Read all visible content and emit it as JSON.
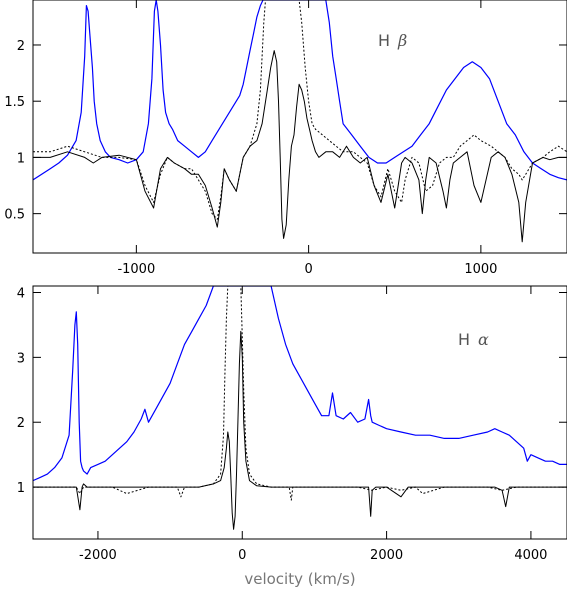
{
  "chart_data": [
    {
      "type": "line",
      "annotation": {
        "element": "H",
        "symbol": "β"
      },
      "xlim": [
        -1600,
        1500
      ],
      "ylim": [
        0.15,
        2.4
      ],
      "xticks": [
        -1000,
        0,
        1000
      ],
      "xtick_labels": [
        "-1000",
        "0",
        "1000"
      ],
      "yticks": [
        0.5,
        1,
        1.5,
        2
      ],
      "ytick_labels": [
        "0.5",
        "1",
        "1.5",
        "2"
      ],
      "grid": false,
      "series": [
        {
          "color": "#0000ff",
          "style": "solid",
          "x": [
            -1600,
            -1500,
            -1450,
            -1400,
            -1350,
            -1320,
            -1300,
            -1290,
            -1280,
            -1270,
            -1255,
            -1245,
            -1230,
            -1210,
            -1180,
            -1150,
            -1100,
            -1050,
            -1000,
            -960,
            -930,
            -910,
            -895,
            -885,
            -875,
            -860,
            -845,
            -830,
            -810,
            -790,
            -760,
            -720,
            -680,
            -640,
            -600,
            -560,
            -520,
            -480,
            -440,
            -400,
            -380,
            -360,
            -340,
            -320,
            -300,
            -280,
            -265,
            -255,
            -250,
            -100,
            -80,
            -60,
            -45,
            -30,
            -15,
            0,
            20,
            40,
            60,
            80,
            100,
            120,
            140,
            160,
            180,
            200,
            250,
            300,
            350,
            400,
            450,
            500,
            550,
            600,
            650,
            700,
            750,
            800,
            850,
            900,
            950,
            1000,
            1050,
            1100,
            1150,
            1200,
            1250,
            1300,
            1350,
            1400,
            1450,
            1500
          ],
          "y": [
            0.8,
            0.9,
            0.95,
            1.02,
            1.15,
            1.4,
            1.9,
            2.35,
            2.3,
            2.1,
            1.8,
            1.5,
            1.3,
            1.15,
            1.05,
            1.0,
            0.98,
            0.95,
            0.98,
            1.05,
            1.3,
            1.7,
            2.3,
            2.4,
            2.3,
            2.0,
            1.6,
            1.4,
            1.3,
            1.25,
            1.15,
            1.1,
            1.05,
            1.0,
            1.05,
            1.15,
            1.25,
            1.35,
            1.45,
            1.55,
            1.65,
            1.8,
            1.95,
            2.1,
            2.25,
            2.35,
            2.4,
            2.4,
            2.4,
            2.4,
            2.4,
            2.4,
            2.4,
            2.4,
            2.4,
            2.4,
            2.4,
            2.4,
            2.4,
            2.4,
            2.4,
            2.2,
            1.9,
            1.7,
            1.5,
            1.3,
            1.2,
            1.1,
            1.0,
            0.95,
            0.95,
            1.0,
            1.05,
            1.1,
            1.2,
            1.3,
            1.45,
            1.6,
            1.7,
            1.8,
            1.85,
            1.8,
            1.7,
            1.5,
            1.3,
            1.2,
            1.05,
            0.95,
            0.9,
            0.85,
            0.82,
            0.8
          ]
        },
        {
          "color": "#000000",
          "style": "solid",
          "x": [
            -1600,
            -1500,
            -1400,
            -1300,
            -1250,
            -1200,
            -1100,
            -1000,
            -950,
            -900,
            -860,
            -820,
            -780,
            -720,
            -680,
            -640,
            -600,
            -560,
            -530,
            -510,
            -490,
            -460,
            -420,
            -380,
            -340,
            -300,
            -270,
            -240,
            -220,
            -200,
            -185,
            -175,
            -165,
            -155,
            -145,
            -130,
            -115,
            -100,
            -85,
            -70,
            -55,
            -40,
            -25,
            -10,
            5,
            20,
            40,
            60,
            100,
            140,
            180,
            220,
            260,
            300,
            340,
            380,
            420,
            460,
            480,
            500,
            520,
            540,
            560,
            600,
            640,
            660,
            680,
            700,
            740,
            780,
            800,
            820,
            840,
            880,
            920,
            960,
            1000,
            1060,
            1100,
            1140,
            1180,
            1220,
            1240,
            1260,
            1300,
            1360,
            1400,
            1450,
            1500
          ],
          "y": [
            1.0,
            1.0,
            1.05,
            1.0,
            0.95,
            1.0,
            1.02,
            0.98,
            0.7,
            0.55,
            0.9,
            1.0,
            0.95,
            0.9,
            0.85,
            0.85,
            0.75,
            0.55,
            0.38,
            0.6,
            0.9,
            0.8,
            0.7,
            1.0,
            1.1,
            1.15,
            1.3,
            1.6,
            1.8,
            1.95,
            1.85,
            1.5,
            1.0,
            0.45,
            0.28,
            0.4,
            0.8,
            1.1,
            1.2,
            1.45,
            1.65,
            1.6,
            1.5,
            1.35,
            1.25,
            1.15,
            1.05,
            1.0,
            1.05,
            1.05,
            1.0,
            1.1,
            1.0,
            0.95,
            1.0,
            0.75,
            0.6,
            0.85,
            0.7,
            0.55,
            0.75,
            0.95,
            1.0,
            0.95,
            0.8,
            0.5,
            0.8,
            1.0,
            0.95,
            0.7,
            0.55,
            0.8,
            0.95,
            1.0,
            1.05,
            0.75,
            0.6,
            1.0,
            1.05,
            1.0,
            0.85,
            0.6,
            0.25,
            0.6,
            0.95,
            1.0,
            0.98,
            1.0,
            1.0
          ]
        },
        {
          "color": "#000000",
          "style": "dotted",
          "x": [
            -1600,
            -1500,
            -1400,
            -1300,
            -1200,
            -1100,
            -1000,
            -950,
            -900,
            -860,
            -820,
            -780,
            -720,
            -680,
            -640,
            -600,
            -560,
            -530,
            -510,
            -490,
            -460,
            -420,
            -380,
            -340,
            -300,
            -280,
            -270,
            -260,
            -250,
            -120,
            -110,
            -100,
            -90,
            -80,
            -70,
            -60,
            -55,
            -40,
            -20,
            0,
            20,
            40,
            80,
            120,
            160,
            200,
            260,
            300,
            340,
            380,
            420,
            460,
            500,
            540,
            560,
            600,
            640,
            680,
            720,
            760,
            800,
            840,
            880,
            920,
            960,
            1000,
            1060,
            1100,
            1140,
            1180,
            1220,
            1240,
            1260,
            1300,
            1360,
            1400,
            1450,
            1500
          ],
          "y": [
            1.05,
            1.05,
            1.1,
            1.05,
            1.0,
            1.0,
            0.98,
            0.75,
            0.6,
            0.85,
            1.0,
            0.95,
            0.9,
            0.9,
            0.8,
            0.7,
            0.5,
            0.45,
            0.65,
            0.9,
            0.8,
            0.7,
            1.0,
            1.1,
            1.3,
            1.6,
            1.9,
            2.2,
            2.4,
            2.4,
            2.4,
            2.4,
            2.4,
            2.4,
            2.4,
            2.4,
            2.4,
            2.2,
            1.8,
            1.5,
            1.3,
            1.25,
            1.2,
            1.15,
            1.1,
            1.05,
            1.05,
            1.0,
            0.95,
            0.75,
            0.65,
            0.9,
            0.7,
            0.6,
            0.8,
            1.0,
            0.95,
            0.7,
            0.75,
            0.95,
            1.0,
            1.0,
            1.1,
            1.15,
            1.2,
            1.15,
            1.1,
            1.05,
            1.0,
            0.9,
            0.85,
            0.8,
            0.85,
            0.95,
            1.0,
            1.05,
            1.1,
            1.05
          ]
        }
      ]
    },
    {
      "type": "line",
      "annotation": {
        "element": "H",
        "symbol": "α"
      },
      "xlabel": "velocity (km/s)",
      "xlim": [
        -2900,
        4500
      ],
      "ylim": [
        0.2,
        4.1
      ],
      "xticks": [
        -2000,
        0,
        2000,
        4000
      ],
      "xtick_labels": [
        "-2000",
        "0",
        "2000",
        "4000"
      ],
      "yticks": [
        1,
        2,
        3,
        4
      ],
      "ytick_labels": [
        "1",
        "2",
        "3",
        "4"
      ],
      "grid": false,
      "series": [
        {
          "color": "#0000ff",
          "style": "solid",
          "x": [
            -2900,
            -2800,
            -2700,
            -2600,
            -2500,
            -2400,
            -2350,
            -2320,
            -2300,
            -2280,
            -2260,
            -2240,
            -2220,
            -2200,
            -2150,
            -2100,
            -2000,
            -1900,
            -1800,
            -1700,
            -1600,
            -1500,
            -1400,
            -1350,
            -1300,
            -1200,
            -1100,
            -1000,
            -900,
            -800,
            -700,
            -600,
            -500,
            -400,
            -300,
            -200,
            -150,
            -100,
            -50,
            0,
            50,
            100,
            150,
            200,
            300,
            350,
            400,
            500,
            600,
            700,
            800,
            900,
            1000,
            1100,
            1200,
            1250,
            1300,
            1400,
            1500,
            1600,
            1700,
            1750,
            1780,
            1800,
            1900,
            2000,
            2200,
            2400,
            2600,
            2800,
            3000,
            3200,
            3400,
            3500,
            3600,
            3700,
            3800,
            3900,
            3950,
            4000,
            4100,
            4200,
            4300,
            4400,
            4500
          ],
          "y": [
            1.1,
            1.15,
            1.2,
            1.3,
            1.45,
            1.8,
            2.8,
            3.5,
            3.7,
            3.2,
            2.0,
            1.4,
            1.3,
            1.25,
            1.2,
            1.3,
            1.35,
            1.4,
            1.5,
            1.6,
            1.7,
            1.85,
            2.05,
            2.2,
            2.0,
            2.2,
            2.4,
            2.6,
            2.9,
            3.2,
            3.4,
            3.6,
            3.8,
            4.1,
            4.1,
            4.1,
            4.1,
            4.1,
            4.1,
            4.1,
            4.1,
            4.1,
            4.1,
            4.1,
            4.1,
            4.1,
            4.1,
            3.6,
            3.2,
            2.9,
            2.7,
            2.5,
            2.3,
            2.1,
            2.1,
            2.45,
            2.1,
            2.05,
            2.15,
            2.0,
            2.05,
            2.35,
            2.1,
            2.0,
            1.95,
            1.9,
            1.85,
            1.8,
            1.8,
            1.75,
            1.75,
            1.8,
            1.85,
            1.9,
            1.85,
            1.8,
            1.7,
            1.6,
            1.4,
            1.5,
            1.45,
            1.4,
            1.4,
            1.35,
            1.35
          ]
        },
        {
          "color": "#000000",
          "style": "solid",
          "x": [
            -2900,
            -2600,
            -2300,
            -2250,
            -2220,
            -2200,
            -2150,
            -2100,
            -2000,
            -1800,
            -1600,
            -1500,
            -1300,
            -1100,
            -1000,
            -800,
            -600,
            -400,
            -300,
            -250,
            -220,
            -200,
            -180,
            -160,
            -140,
            -120,
            -100,
            -80,
            -60,
            -40,
            -20,
            0,
            20,
            50,
            100,
            200,
            400,
            600,
            800,
            1000,
            1200,
            1400,
            1600,
            1750,
            1780,
            1800,
            1850,
            2000,
            2200,
            2300,
            2500,
            2800,
            3000,
            3200,
            3400,
            3500,
            3600,
            3650,
            3700,
            3800,
            4000,
            4200,
            4500
          ],
          "y": [
            1.0,
            1.0,
            1.0,
            0.65,
            1.0,
            1.05,
            1.0,
            1.0,
            1.0,
            1.0,
            1.0,
            1.0,
            1.0,
            1.0,
            1.0,
            1.0,
            1.0,
            1.05,
            1.1,
            1.3,
            1.6,
            1.85,
            1.7,
            1.2,
            0.6,
            0.35,
            0.55,
            1.2,
            2.0,
            2.9,
            3.4,
            3.0,
            2.0,
            1.4,
            1.1,
            1.02,
            1.0,
            1.0,
            1.0,
            1.0,
            1.0,
            1.0,
            1.0,
            1.0,
            0.55,
            0.95,
            1.0,
            1.0,
            0.85,
            1.0,
            1.0,
            1.0,
            1.0,
            1.0,
            1.0,
            1.0,
            0.95,
            0.7,
            1.0,
            1.0,
            1.0,
            1.0,
            1.0
          ]
        },
        {
          "color": "#000000",
          "style": "dotted",
          "x": [
            -2900,
            -2600,
            -2300,
            -2250,
            -2200,
            -2000,
            -1800,
            -1600,
            -1300,
            -1100,
            -900,
            -850,
            -800,
            -600,
            -400,
            -300,
            -260,
            -240,
            -220,
            -200,
            -180,
            -160,
            -150,
            -140,
            -120,
            -100,
            -80,
            -60,
            -40,
            -20,
            0,
            20,
            50,
            100,
            200,
            400,
            600,
            650,
            680,
            700,
            800,
            1000,
            1200,
            1400,
            1600,
            1800,
            2000,
            2200,
            2400,
            2500,
            2800,
            3000,
            3200,
            3400,
            3600,
            3800,
            4000,
            4200,
            4500
          ],
          "y": [
            1.0,
            1.0,
            1.0,
            0.9,
            1.0,
            1.0,
            1.0,
            0.9,
            1.0,
            1.0,
            1.0,
            0.85,
            1.0,
            1.0,
            1.05,
            1.2,
            1.8,
            2.8,
            3.6,
            4.1,
            4.1,
            4.1,
            4.1,
            4.1,
            4.1,
            4.1,
            4.1,
            4.1,
            4.1,
            4.1,
            3.3,
            2.5,
            1.6,
            1.2,
            1.05,
            1.0,
            1.0,
            1.0,
            0.8,
            1.0,
            1.0,
            1.0,
            1.0,
            1.0,
            1.0,
            0.95,
            1.0,
            0.95,
            1.0,
            0.9,
            1.0,
            1.0,
            1.0,
            1.0,
            0.95,
            1.0,
            1.0,
            1.0,
            1.0
          ]
        }
      ]
    }
  ]
}
